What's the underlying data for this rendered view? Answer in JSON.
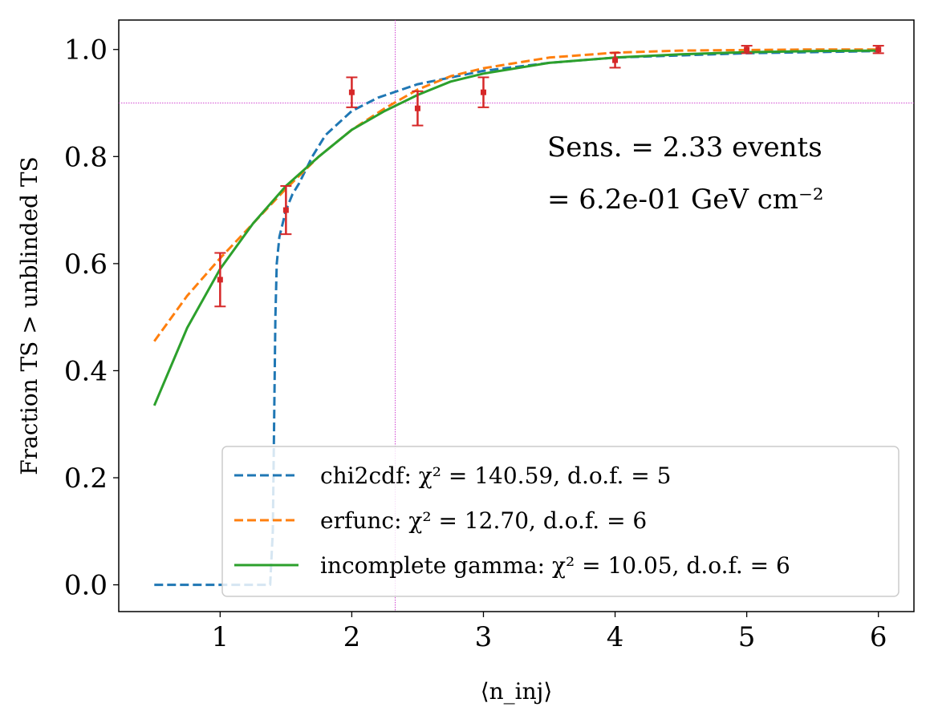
{
  "chart_data": {
    "type": "line",
    "xlabel": "⟨n_inj⟩",
    "ylabel": "Fraction TS > unblinded TS",
    "xlim": [
      0.23,
      6.27
    ],
    "ylim": [
      -0.05,
      1.055
    ],
    "xticks": [
      1,
      2,
      3,
      4,
      5,
      6
    ],
    "yticks": [
      0.0,
      0.2,
      0.4,
      0.6,
      0.8,
      1.0
    ],
    "ytick_labels": [
      "0.0",
      "0.2",
      "0.4",
      "0.6",
      "0.8",
      "1.0"
    ],
    "grid": false,
    "annotations": [
      "Sens. = 2.33 events",
      "= 6.2e-01 GeV cm⁻²"
    ],
    "reference_lines": {
      "vertical_x": 2.33,
      "horizontal_y": 0.9,
      "color": "#cc33cc"
    },
    "legend_placement": "lower-right",
    "series": [
      {
        "name": "chi2cdf: χ² = 140.59, d.o.f. = 5",
        "style": "dashed",
        "color": "#1f77b4",
        "x": [
          0.5,
          1.0,
          1.38,
          1.4,
          1.41,
          1.42,
          1.43,
          1.45,
          1.5,
          1.55,
          1.6,
          1.7,
          1.8,
          2.0,
          2.2,
          2.5,
          3.0,
          3.5,
          4.0,
          5.0,
          6.0
        ],
        "y": [
          0.0,
          0.0,
          0.0,
          0.1,
          0.3,
          0.5,
          0.6,
          0.65,
          0.7,
          0.73,
          0.75,
          0.8,
          0.84,
          0.885,
          0.91,
          0.935,
          0.96,
          0.975,
          0.985,
          0.993,
          0.997
        ]
      },
      {
        "name": "erfunc: χ² = 12.70, d.o.f. = 6",
        "style": "dashed",
        "color": "#ff7f0e",
        "x": [
          0.5,
          0.75,
          1.0,
          1.25,
          1.5,
          1.75,
          2.0,
          2.25,
          2.5,
          2.75,
          3.0,
          3.5,
          4.0,
          4.5,
          5.0,
          5.5,
          6.0
        ],
        "y": [
          0.455,
          0.54,
          0.61,
          0.675,
          0.74,
          0.8,
          0.85,
          0.89,
          0.925,
          0.95,
          0.965,
          0.985,
          0.994,
          0.998,
          0.999,
          1.0,
          1.0
        ]
      },
      {
        "name": "incomplete gamma: χ² = 10.05, d.o.f. = 6",
        "style": "solid",
        "color": "#2ca02c",
        "x": [
          0.5,
          0.75,
          1.0,
          1.25,
          1.5,
          1.75,
          2.0,
          2.25,
          2.5,
          2.75,
          3.0,
          3.5,
          4.0,
          4.5,
          5.0,
          5.5,
          6.0
        ],
        "y": [
          0.335,
          0.48,
          0.59,
          0.675,
          0.745,
          0.8,
          0.85,
          0.885,
          0.915,
          0.94,
          0.955,
          0.975,
          0.985,
          0.991,
          0.995,
          0.997,
          0.998
        ]
      }
    ],
    "points": {
      "color": "#d62728",
      "x": [
        1.0,
        1.5,
        2.0,
        2.5,
        3.0,
        4.0,
        5.0,
        6.0
      ],
      "y": [
        0.57,
        0.7,
        0.92,
        0.89,
        0.92,
        0.98,
        1.0,
        1.0
      ],
      "err": [
        0.05,
        0.045,
        0.028,
        0.032,
        0.028,
        0.014,
        0.007,
        0.007
      ]
    }
  }
}
